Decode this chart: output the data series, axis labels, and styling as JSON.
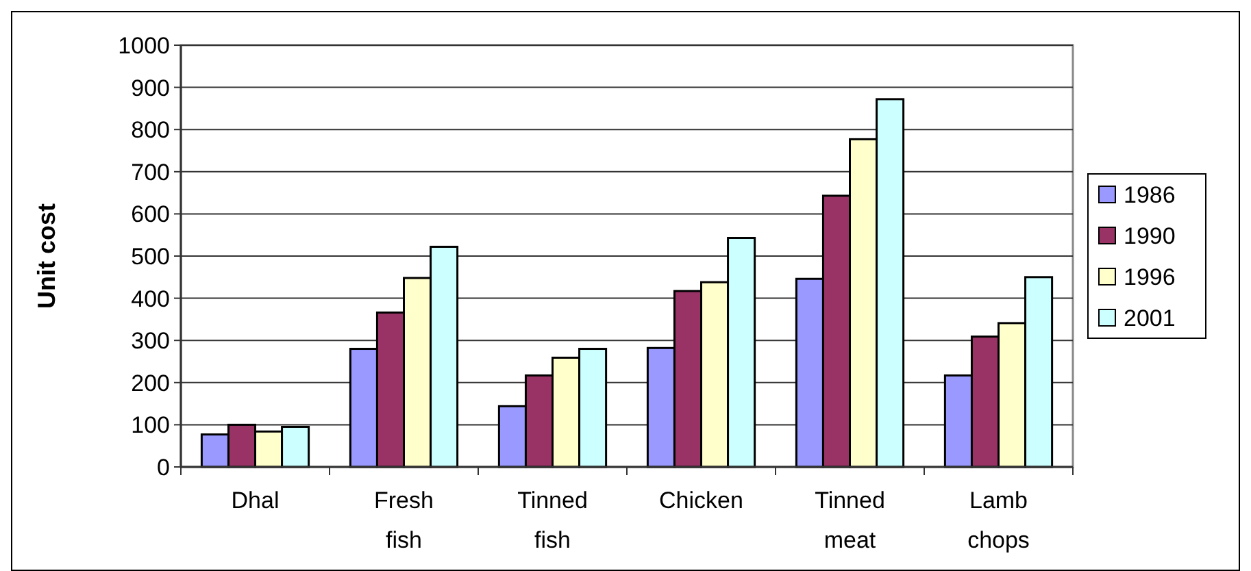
{
  "chart_data": {
    "type": "bar",
    "ylabel": "Unit cost",
    "categories": [
      "Dhal",
      "Fresh fish",
      "Tinned fish",
      "Chicken",
      "Tinned meat",
      "Lamb chops"
    ],
    "series": [
      {
        "name": "1986",
        "color": "#9999ff",
        "values": [
          77,
          280,
          144,
          282,
          446,
          217
        ]
      },
      {
        "name": "1990",
        "color": "#993366",
        "values": [
          100,
          366,
          217,
          417,
          643,
          309
        ]
      },
      {
        "name": "1996",
        "color": "#ffffcc",
        "values": [
          84,
          448,
          259,
          438,
          777,
          341
        ]
      },
      {
        "name": "2001",
        "color": "#ccffff",
        "values": [
          95,
          522,
          280,
          543,
          872,
          450
        ]
      }
    ],
    "ylim": [
      0,
      1000
    ],
    "yticks": [
      0,
      100,
      200,
      300,
      400,
      500,
      600,
      700,
      800,
      900,
      1000
    ],
    "grid": "y",
    "legend": "right"
  }
}
